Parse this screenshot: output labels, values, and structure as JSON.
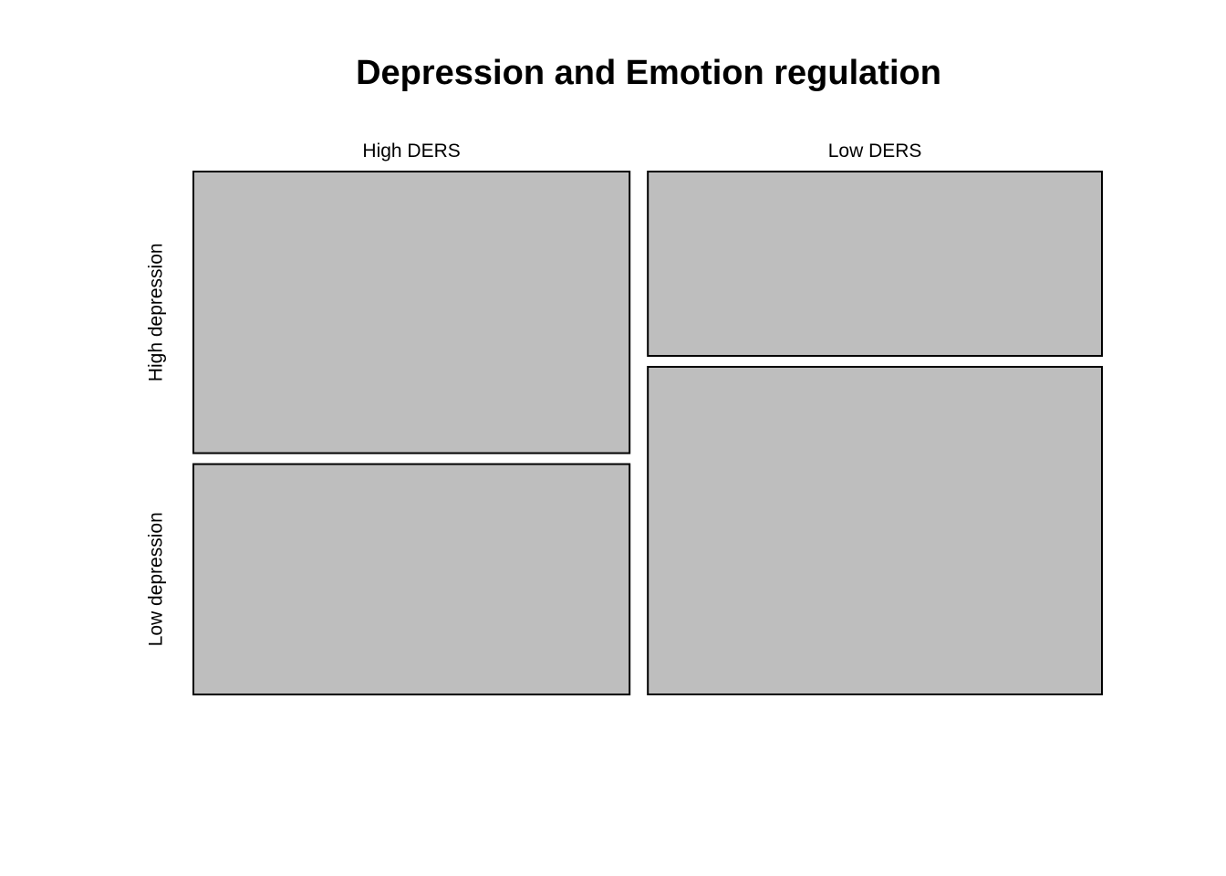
{
  "chart_data": {
    "type": "mosaic",
    "title": "Depression and Emotion regulation",
    "columns": [
      "High DERS",
      "Low DERS"
    ],
    "rows": [
      "High depression",
      "Low depression"
    ],
    "column_proportions": [
      0.49,
      0.51
    ],
    "row_proportions_within_column": [
      [
        0.55,
        0.45
      ],
      [
        0.36,
        0.64
      ]
    ],
    "tile_fill": "#bebebe",
    "border_color": "#000000"
  }
}
